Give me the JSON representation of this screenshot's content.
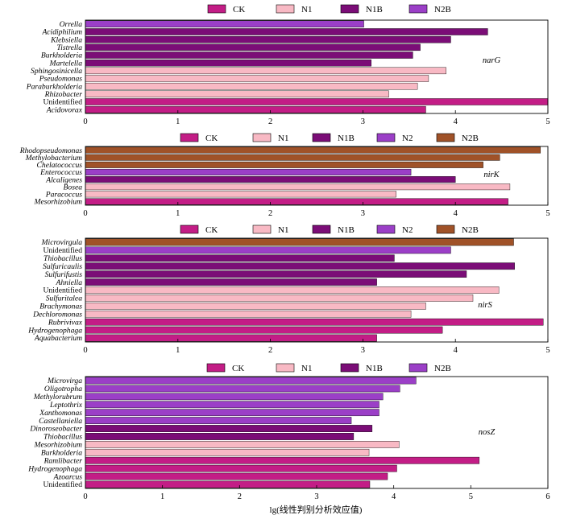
{
  "colors": {
    "CK": "#c31d86",
    "N1": "#f8b9c4",
    "N1B": "#7b0d77",
    "N2": "#9b3fc7",
    "N2B_brown": "#a05228",
    "N2B_violet": "#9b3fc7",
    "frame": "#000000"
  },
  "xlabel": "lg(线性判别分析效应值)",
  "chart_data": [
    {
      "type": "bar",
      "orientation": "horizontal",
      "gene": "narG",
      "legend": [
        "CK",
        "N1",
        "N1B",
        "N2B"
      ],
      "xlim": [
        0,
        5
      ],
      "xticks": [
        0,
        1,
        2,
        3,
        4,
        5
      ],
      "categories": [
        "Orrella",
        "Acidiphilium",
        "Klebsiella",
        "Tistrella",
        "Burkholderia",
        "Martelella",
        "Sphingosinicella",
        "Pseudomonas",
        "Paraburkholderia",
        "Rhizobacter",
        "Unidentified",
        "Acidovorax"
      ],
      "values": [
        3.01,
        4.35,
        3.95,
        3.62,
        3.54,
        3.09,
        3.9,
        3.71,
        3.59,
        3.28,
        5.0,
        3.68
      ],
      "groups": [
        "N2B",
        "N1B",
        "N1B",
        "N1B",
        "N1B",
        "N1B",
        "N1",
        "N1",
        "N1",
        "N1",
        "CK",
        "CK"
      ]
    },
    {
      "type": "bar",
      "orientation": "horizontal",
      "gene": "nirK",
      "legend": [
        "CK",
        "N1",
        "N1B",
        "N2",
        "N2B"
      ],
      "xlim": [
        0,
        5
      ],
      "xticks": [
        0,
        1,
        2,
        3,
        4,
        5
      ],
      "categories": [
        "Rhodopseudomonas",
        "Methylobacterium",
        "Chelatococcus",
        "Enterococcus",
        "Alcaligenes",
        "Bosea",
        "Paracoccus",
        "Mesorhizobium"
      ],
      "values": [
        4.92,
        4.48,
        4.3,
        3.52,
        4.0,
        4.59,
        3.36,
        4.57
      ],
      "groups": [
        "N2B",
        "N2B",
        "N2B",
        "N2",
        "N1B",
        "N1",
        "N1",
        "CK"
      ]
    },
    {
      "type": "bar",
      "orientation": "horizontal",
      "gene": "nirS",
      "legend": [
        "CK",
        "N1",
        "N1B",
        "N2",
        "N2B"
      ],
      "xlim": [
        0,
        5
      ],
      "xticks": [
        0,
        1,
        2,
        3,
        4,
        5
      ],
      "categories": [
        "Microvirgula",
        "Unidentified",
        "Thiobacillus",
        "Sulfuricaulis",
        "Sulfurifustis",
        "Ahniella",
        "Unidentified",
        "Sulfuritalea",
        "Brachymonas",
        "Dechloromonas",
        "Rubrivivax",
        "Hydrogenophaga",
        "Aquabacterium"
      ],
      "values": [
        4.63,
        3.95,
        3.34,
        4.64,
        4.12,
        3.15,
        4.47,
        4.19,
        3.68,
        3.52,
        4.95,
        3.86,
        3.15
      ],
      "groups": [
        "N2B",
        "N2",
        "N1B",
        "N1B",
        "N1B",
        "N1B",
        "N1",
        "N1",
        "N1",
        "N1",
        "CK",
        "CK",
        "CK"
      ]
    },
    {
      "type": "bar",
      "orientation": "horizontal",
      "gene": "nosZ",
      "legend": [
        "CK",
        "N1",
        "N1B",
        "N2B"
      ],
      "xlim": [
        0,
        6
      ],
      "xticks": [
        0,
        1,
        2,
        3,
        4,
        5,
        6
      ],
      "categories": [
        "Microvirga",
        "Oligotropha",
        "Methylorubrum",
        "Leptothrix",
        "Xanthomonas",
        "Castellaniella",
        "Dinoroseobacter",
        "Thiobacillus",
        "Mesorhizobium",
        "Burkholderia",
        "Ramlibacter",
        "Hydrogenophaga",
        "Azoarcus",
        "Unidentified"
      ],
      "values": [
        4.29,
        4.08,
        3.86,
        3.81,
        3.81,
        3.45,
        3.72,
        3.48,
        4.07,
        3.68,
        5.11,
        4.04,
        3.92,
        3.69
      ],
      "groups": [
        "N2B",
        "N2B",
        "N2B",
        "N2B",
        "N2B",
        "N2B",
        "N1B",
        "N1B",
        "N1",
        "N1",
        "CK",
        "CK",
        "CK",
        "CK"
      ]
    }
  ]
}
